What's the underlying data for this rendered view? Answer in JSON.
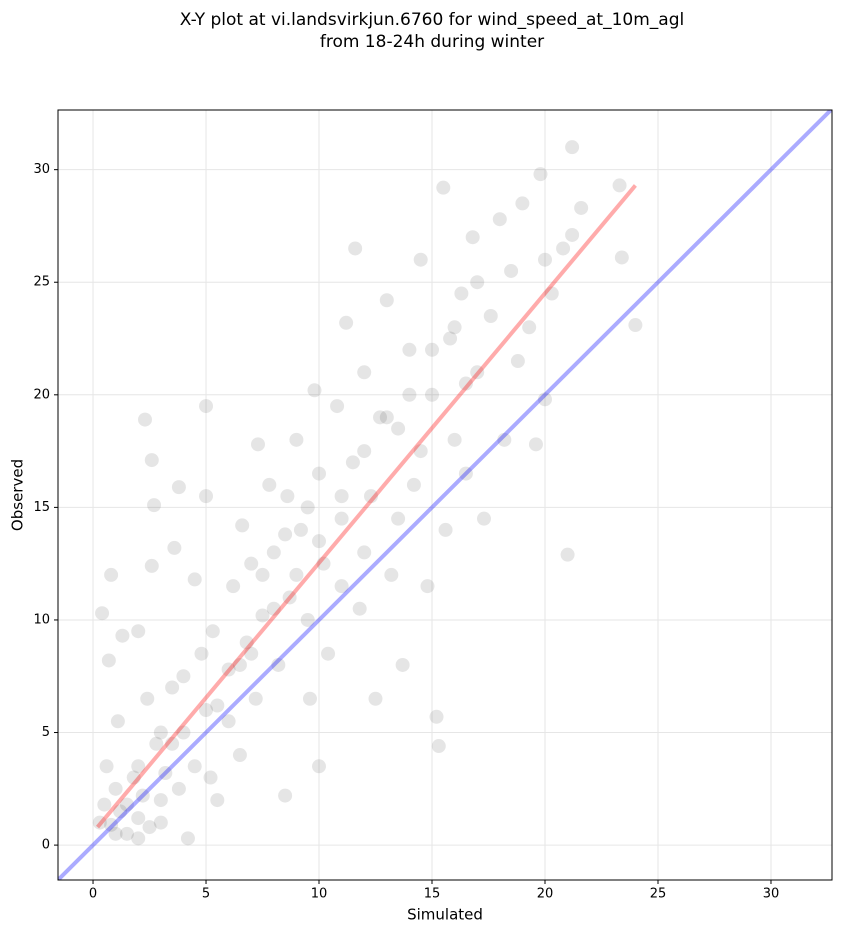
{
  "chart_data": {
    "type": "scatter",
    "title": "X-Y plot at vi.landsvirkjun.6760 for wind_speed_at_10m_agl",
    "subtitle": "from 18-24h during winter",
    "x_label": "Simulated",
    "y_label": "Observed",
    "xlim": [
      -1.55,
      32.7
    ],
    "ylim": [
      -1.55,
      32.65
    ],
    "xticks": [
      0,
      5,
      10,
      15,
      20,
      25,
      30
    ],
    "yticks": [
      0,
      5,
      10,
      15,
      20,
      25,
      30
    ],
    "grid": true,
    "color": "#000000",
    "x": [
      0.5,
      0.8,
      1.0,
      1.2,
      1.5,
      1.8,
      2.0,
      0.6,
      1.1,
      0.4,
      0.8,
      1.3,
      0.7,
      2.2,
      2.5,
      2.8,
      3.0,
      2.4,
      3.2,
      2.0,
      2.6,
      2.6,
      2.3,
      2.7,
      3.5,
      3.8,
      4.0,
      4.2,
      3.6,
      3.8,
      4.5,
      4.8,
      5.0,
      5.2,
      5.5,
      5.3,
      5.0,
      6.0,
      6.2,
      6.5,
      6.8,
      6.6,
      7.0,
      7.2,
      7.5,
      7.3,
      7.8,
      8.0,
      8.2,
      8.5,
      8.7,
      8.6,
      9.0,
      9.2,
      9.5,
      9.6,
      9.8,
      10.0,
      10.2,
      10.0,
      10.4,
      10.8,
      11.0,
      11.2,
      11.5,
      11.6,
      11.8,
      12.0,
      12.3,
      12.5,
      12.7,
      13.0,
      13.2,
      13.5,
      13.7,
      14.0,
      14.2,
      14.5,
      14.8,
      15.0,
      15.2,
      15.3,
      15.5,
      15.6,
      15.8,
      16.0,
      16.3,
      16.5,
      16.8,
      17.0,
      17.3,
      17.6,
      18.0,
      18.2,
      18.5,
      18.8,
      19.0,
      19.3,
      19.6,
      19.8,
      20.0,
      20.0,
      20.3,
      20.8,
      21.0,
      21.2,
      21.2,
      21.6,
      23.3,
      23.4,
      24.0,
      1.5,
      2.0,
      3.0,
      3.5,
      4.5,
      5.5,
      6.0,
      7.0,
      8.0,
      9.0,
      10.0,
      11.0,
      12.0,
      13.0,
      14.0,
      15.0,
      16.0,
      17.0,
      12.0,
      13.5,
      11.0,
      6.5,
      5.0,
      4.0,
      3.0,
      1.0,
      2.0,
      0.3,
      9.5,
      8.5,
      7.5,
      14.5,
      16.5
    ],
    "y": [
      1.8,
      0.9,
      2.5,
      1.5,
      0.5,
      3.0,
      1.2,
      3.5,
      5.5,
      10.3,
      12.0,
      9.3,
      8.2,
      2.2,
      0.8,
      4.5,
      1.0,
      6.5,
      3.2,
      9.5,
      12.4,
      17.1,
      18.9,
      15.1,
      7.0,
      2.5,
      5.0,
      0.3,
      13.2,
      15.9,
      11.8,
      8.5,
      19.5,
      3.0,
      6.2,
      9.5,
      15.5,
      7.8,
      11.5,
      4.0,
      9.0,
      14.2,
      12.5,
      6.5,
      10.2,
      17.8,
      16.0,
      13.0,
      8.0,
      2.2,
      11.0,
      15.5,
      18.0,
      14.0,
      10.0,
      6.5,
      20.2,
      16.5,
      12.5,
      3.5,
      8.5,
      19.5,
      14.5,
      23.2,
      17.0,
      26.5,
      10.5,
      21.0,
      15.5,
      6.5,
      19.0,
      24.2,
      12.0,
      18.5,
      8.0,
      22.0,
      16.0,
      26.0,
      11.5,
      20.0,
      5.7,
      4.4,
      29.2,
      14.0,
      22.5,
      18.0,
      24.5,
      16.5,
      27.0,
      21.0,
      14.5,
      23.5,
      27.8,
      18.0,
      25.5,
      21.5,
      28.5,
      23.0,
      17.8,
      29.8,
      26.0,
      19.8,
      24.5,
      26.5,
      12.9,
      31.0,
      27.1,
      28.3,
      29.3,
      26.1,
      23.1,
      1.8,
      3.5,
      2.0,
      4.5,
      3.5,
      2.0,
      5.5,
      8.5,
      10.5,
      12.0,
      13.5,
      15.5,
      17.5,
      19.0,
      20.0,
      22.0,
      23.0,
      25.0,
      13.0,
      14.5,
      11.5,
      8.0,
      6.0,
      7.5,
      5.0,
      0.5,
      0.3,
      1.0,
      15.0,
      13.8,
      12.0,
      17.5,
      20.5
    ],
    "lines": [
      {
        "color": "#0000ff",
        "x": [
          -1.55,
          32.7
        ],
        "y": [
          -1.55,
          32.7
        ]
      },
      {
        "color": "#ff0000",
        "x": [
          0.2,
          24.0
        ],
        "y": [
          0.8,
          29.3
        ]
      }
    ]
  }
}
